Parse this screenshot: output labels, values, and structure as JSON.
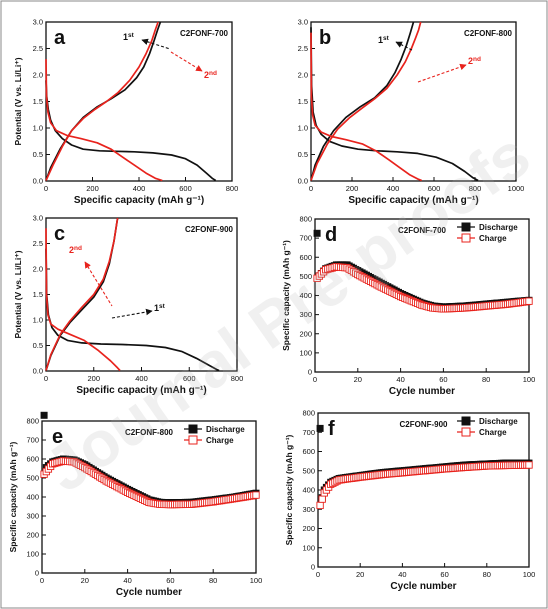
{
  "watermark": "Journal Pre-proofs",
  "colors": {
    "black": "#111111",
    "red": "#e8231d"
  },
  "chart_data": [
    {
      "panel": "a",
      "type": "line",
      "sample": "C2FONF-700",
      "xlabel": "Specific capacity (mAh g⁻¹)",
      "ylabel": "Potential (V vs. Li/Li⁺)",
      "xlim": [
        0,
        800
      ],
      "ylim": [
        0,
        3.0
      ],
      "xticks": [
        0,
        200,
        400,
        600,
        800
      ],
      "yticks": [
        0.0,
        0.5,
        1.0,
        1.5,
        2.0,
        2.5,
        3.0
      ],
      "annotations": [
        {
          "text": "1st",
          "color": "black"
        },
        {
          "text": "2nd",
          "color": "red"
        }
      ],
      "series": [
        {
          "color": "black",
          "x": [
            0,
            3,
            10,
            20,
            40,
            70,
            110,
            160,
            230,
            300,
            380,
            460,
            540,
            600,
            650,
            690,
            715,
            730
          ],
          "y": [
            1.9,
            1.6,
            1.35,
            1.15,
            0.95,
            0.8,
            0.68,
            0.6,
            0.57,
            0.56,
            0.55,
            0.53,
            0.49,
            0.42,
            0.3,
            0.15,
            0.05,
            0.01
          ]
        },
        {
          "color": "black",
          "x": [
            0,
            20,
            60,
            110,
            160,
            220,
            280,
            340,
            390,
            420,
            445,
            465,
            480,
            492
          ],
          "y": [
            0.01,
            0.25,
            0.6,
            0.95,
            1.2,
            1.4,
            1.55,
            1.72,
            1.95,
            2.15,
            2.4,
            2.65,
            2.85,
            3.0
          ]
        },
        {
          "color": "red",
          "x": [
            0,
            2,
            8,
            20,
            45,
            90,
            150,
            220,
            280,
            330,
            380,
            430,
            470,
            500
          ],
          "y": [
            2.3,
            1.6,
            1.3,
            1.1,
            0.95,
            0.86,
            0.8,
            0.72,
            0.6,
            0.45,
            0.3,
            0.15,
            0.05,
            0.01
          ]
        },
        {
          "color": "red",
          "x": [
            0,
            30,
            70,
            110,
            160,
            210,
            260,
            310,
            360,
            400,
            430,
            455,
            470,
            482
          ],
          "y": [
            0.01,
            0.3,
            0.65,
            0.95,
            1.18,
            1.35,
            1.5,
            1.67,
            1.9,
            2.15,
            2.4,
            2.65,
            2.85,
            3.0
          ]
        }
      ]
    },
    {
      "panel": "b",
      "type": "line",
      "sample": "C2FONF-800",
      "xlabel": "Specific capacity (mAh g⁻¹)",
      "ylabel": "",
      "xlim": [
        0,
        1000
      ],
      "ylim": [
        0,
        3.0
      ],
      "xticks": [
        0,
        200,
        400,
        600,
        800,
        1000
      ],
      "yticks": [
        0.0,
        0.5,
        1.0,
        1.5,
        2.0,
        2.5,
        3.0
      ],
      "annotations": [
        {
          "text": "1st",
          "color": "black"
        },
        {
          "text": "2nd",
          "color": "red"
        }
      ],
      "series": [
        {
          "color": "black",
          "x": [
            0,
            3,
            10,
            25,
            50,
            90,
            150,
            230,
            320,
            420,
            520,
            610,
            690,
            750,
            790,
            815
          ],
          "y": [
            2.9,
            1.8,
            1.3,
            1.05,
            0.88,
            0.75,
            0.66,
            0.6,
            0.57,
            0.55,
            0.52,
            0.45,
            0.33,
            0.18,
            0.06,
            0.01
          ]
        },
        {
          "color": "black",
          "x": [
            0,
            20,
            60,
            110,
            170,
            240,
            310,
            370,
            410,
            440,
            465,
            485,
            500
          ],
          "y": [
            0.01,
            0.3,
            0.65,
            0.95,
            1.2,
            1.4,
            1.57,
            1.8,
            2.05,
            2.3,
            2.55,
            2.8,
            3.0
          ]
        },
        {
          "color": "red",
          "x": [
            0,
            2,
            8,
            20,
            50,
            100,
            170,
            250,
            320,
            380,
            430,
            480,
            520,
            540
          ],
          "y": [
            2.8,
            1.6,
            1.25,
            1.05,
            0.92,
            0.84,
            0.78,
            0.7,
            0.56,
            0.4,
            0.26,
            0.12,
            0.04,
            0.01
          ]
        },
        {
          "color": "red",
          "x": [
            0,
            30,
            80,
            130,
            190,
            250,
            310,
            370,
            420,
            460,
            490,
            510,
            525,
            535
          ],
          "y": [
            0.01,
            0.33,
            0.7,
            0.98,
            1.2,
            1.38,
            1.55,
            1.75,
            2.0,
            2.25,
            2.5,
            2.7,
            2.85,
            3.0
          ]
        }
      ]
    },
    {
      "panel": "c",
      "type": "line",
      "sample": "C2FONF-900",
      "xlabel": "Specific capacity (mAh g⁻¹)",
      "ylabel": "Potential (V vs. Li/Li⁺)",
      "xlim": [
        0,
        800
      ],
      "ylim": [
        0,
        3.0
      ],
      "xticks": [
        0,
        200,
        400,
        600,
        800
      ],
      "yticks": [
        0.0,
        0.5,
        1.0,
        1.5,
        2.0,
        2.5,
        3.0
      ],
      "annotations": [
        {
          "text": "2nd",
          "color": "red"
        },
        {
          "text": "1st",
          "color": "black"
        }
      ],
      "series": [
        {
          "color": "black",
          "x": [
            0,
            3,
            10,
            25,
            50,
            90,
            150,
            230,
            320,
            420,
            500,
            570,
            630,
            680,
            715,
            725
          ],
          "y": [
            2.4,
            1.5,
            1.1,
            0.85,
            0.7,
            0.6,
            0.55,
            0.53,
            0.52,
            0.5,
            0.46,
            0.38,
            0.25,
            0.12,
            0.03,
            0.01
          ]
        },
        {
          "color": "black",
          "x": [
            0,
            20,
            60,
            100,
            150,
            200,
            240,
            265,
            285,
            300
          ],
          "y": [
            0.01,
            0.3,
            0.7,
            0.95,
            1.2,
            1.45,
            1.75,
            2.1,
            2.55,
            3.0
          ]
        },
        {
          "color": "red",
          "x": [
            0,
            2,
            8,
            20,
            50,
            100,
            160,
            220,
            270,
            300,
            310
          ],
          "y": [
            2.8,
            1.5,
            1.1,
            0.92,
            0.82,
            0.72,
            0.6,
            0.4,
            0.2,
            0.06,
            0.01
          ]
        },
        {
          "color": "red",
          "x": [
            0,
            20,
            60,
            100,
            150,
            200,
            240,
            265,
            285,
            295,
            300
          ],
          "y": [
            0.01,
            0.32,
            0.72,
            0.98,
            1.25,
            1.5,
            1.8,
            2.15,
            2.55,
            2.85,
            3.0
          ]
        }
      ]
    },
    {
      "panel": "d",
      "type": "scatter",
      "sample": "C2FONF-700",
      "xlabel": "Cycle number",
      "ylabel": "Specific capacity (mAh g⁻¹)",
      "xlim": [
        0,
        100
      ],
      "ylim": [
        0,
        800
      ],
      "xticks": [
        0,
        20,
        40,
        60,
        80,
        100
      ],
      "yticks": [
        0,
        100,
        200,
        300,
        400,
        500,
        600,
        700,
        800
      ],
      "legend": "top-right",
      "series": [
        {
          "name": "Discharge",
          "color": "black",
          "marker": "filled-square",
          "first": 725,
          "curve": [
            [
              1,
              490
            ],
            [
              5,
              540
            ],
            [
              10,
              560
            ],
            [
              15,
              560
            ],
            [
              20,
              530
            ],
            [
              30,
              470
            ],
            [
              40,
              410
            ],
            [
              50,
              360
            ],
            [
              55,
              345
            ],
            [
              60,
              340
            ],
            [
              70,
              345
            ],
            [
              80,
              355
            ],
            [
              90,
              365
            ],
            [
              100,
              375
            ]
          ]
        },
        {
          "name": "Charge",
          "color": "red",
          "marker": "open-square",
          "first": 490,
          "curve": [
            [
              1,
              490
            ],
            [
              5,
              535
            ],
            [
              10,
              550
            ],
            [
              15,
              545
            ],
            [
              20,
              510
            ],
            [
              30,
              450
            ],
            [
              40,
              395
            ],
            [
              50,
              350
            ],
            [
              55,
              335
            ],
            [
              60,
              330
            ],
            [
              70,
              335
            ],
            [
              80,
              345
            ],
            [
              90,
              355
            ],
            [
              100,
              370
            ]
          ]
        }
      ]
    },
    {
      "panel": "e",
      "type": "scatter",
      "sample": "C2FONF-800",
      "xlabel": "Cycle number",
      "ylabel": "Specific capacity (mAh g⁻¹)",
      "xlim": [
        0,
        100
      ],
      "ylim": [
        0,
        800
      ],
      "xticks": [
        0,
        20,
        40,
        60,
        80,
        100
      ],
      "yticks": [
        0,
        100,
        200,
        300,
        400,
        500,
        600,
        700,
        800
      ],
      "legend": "top-right",
      "series": [
        {
          "name": "Discharge",
          "color": "black",
          "marker": "filled-square",
          "first": 830,
          "curve": [
            [
              1,
              545
            ],
            [
              5,
              585
            ],
            [
              10,
              600
            ],
            [
              15,
              595
            ],
            [
              20,
              570
            ],
            [
              30,
              500
            ],
            [
              40,
              440
            ],
            [
              50,
              385
            ],
            [
              55,
              372
            ],
            [
              60,
              370
            ],
            [
              70,
              372
            ],
            [
              80,
              385
            ],
            [
              90,
              400
            ],
            [
              100,
              420
            ]
          ]
        },
        {
          "name": "Charge",
          "color": "red",
          "marker": "open-square",
          "first": 520,
          "curve": [
            [
              1,
              520
            ],
            [
              5,
              575
            ],
            [
              10,
              590
            ],
            [
              15,
              585
            ],
            [
              20,
              555
            ],
            [
              30,
              485
            ],
            [
              40,
              425
            ],
            [
              50,
              372
            ],
            [
              55,
              362
            ],
            [
              60,
              360
            ],
            [
              70,
              362
            ],
            [
              80,
              375
            ],
            [
              90,
              392
            ],
            [
              100,
              410
            ]
          ]
        }
      ]
    },
    {
      "panel": "f",
      "type": "scatter",
      "sample": "C2FONF-900",
      "xlabel": "Cycle number",
      "ylabel": "Specific capacity (mAh g⁻¹)",
      "xlim": [
        0,
        100
      ],
      "ylim": [
        0,
        800
      ],
      "xticks": [
        0,
        20,
        40,
        60,
        80,
        100
      ],
      "yticks": [
        0,
        100,
        200,
        300,
        400,
        500,
        600,
        700,
        800
      ],
      "legend": "top-right",
      "series": [
        {
          "name": "Discharge",
          "color": "black",
          "marker": "filled-square",
          "first": 720,
          "curve": [
            [
              1,
              320
            ],
            [
              3,
              400
            ],
            [
              6,
              440
            ],
            [
              10,
              460
            ],
            [
              20,
              475
            ],
            [
              30,
              490
            ],
            [
              40,
              500
            ],
            [
              50,
              510
            ],
            [
              60,
              520
            ],
            [
              70,
              530
            ],
            [
              80,
              535
            ],
            [
              90,
              540
            ],
            [
              100,
              540
            ]
          ]
        },
        {
          "name": "Charge",
          "color": "red",
          "marker": "open-square",
          "first": 320,
          "curve": [
            [
              1,
              320
            ],
            [
              3,
              385
            ],
            [
              6,
              430
            ],
            [
              10,
              452
            ],
            [
              20,
              467
            ],
            [
              30,
              480
            ],
            [
              40,
              490
            ],
            [
              50,
              500
            ],
            [
              60,
              510
            ],
            [
              70,
              518
            ],
            [
              80,
              525
            ],
            [
              90,
              528
            ],
            [
              100,
              530
            ]
          ]
        }
      ]
    }
  ]
}
